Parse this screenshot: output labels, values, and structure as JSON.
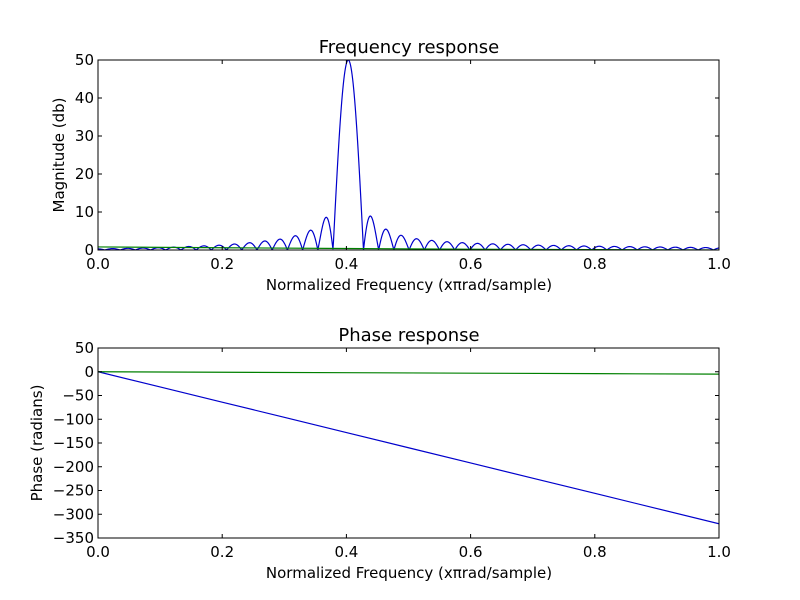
{
  "chart_data": [
    {
      "type": "line",
      "title": "Frequency response",
      "xlabel": "Normalized Frequency (xπrad/sample)",
      "ylabel": "Magnitude (db)",
      "xlim": [
        0,
        1
      ],
      "ylim": [
        0,
        50
      ],
      "xticks": [
        "0.0",
        "0.2",
        "0.4",
        "0.6",
        "0.8",
        "1.0"
      ],
      "yticks": [
        "0",
        "10",
        "20",
        "30",
        "40",
        "50"
      ],
      "grid": false,
      "series": [
        {
          "color": "#0000cc",
          "shape": "sinc-lobes",
          "center": 0.403,
          "peak": 50,
          "null_spacing": 0.0245,
          "sidelobe_peaks": {
            "x": [
              0.377,
              0.429,
              0.353,
              0.454,
              0.328,
              0.479,
              0.3,
              0.5,
              0.25,
              0.55,
              0.2,
              0.6,
              0.1,
              0.7,
              0.0,
              0.8,
              0.9,
              1.0
            ],
            "y": [
              10.5,
              10.8,
              6.0,
              6.2,
              4.2,
              4.4,
              3.0,
              3.2,
              2.0,
              2.3,
              1.3,
              1.8,
              0.6,
              1.3,
              0.3,
              1.0,
              0.8,
              0.6
            ]
          }
        },
        {
          "color": "#008000",
          "x": [
            0.0,
            0.2,
            0.4,
            0.6,
            0.8,
            1.0
          ],
          "y": [
            0.8,
            0.6,
            0.4,
            0.2,
            0.1,
            0.0
          ]
        }
      ]
    },
    {
      "type": "line",
      "title": "Phase response",
      "xlabel": "Normalized Frequency (xπrad/sample)",
      "ylabel": "Phase (radians)",
      "xlim": [
        0,
        1
      ],
      "ylim": [
        -350,
        50
      ],
      "xticks": [
        "0.0",
        "0.2",
        "0.4",
        "0.6",
        "0.8",
        "1.0"
      ],
      "yticks": [
        "50",
        "0",
        "−50",
        "−100",
        "−150",
        "−200",
        "−250",
        "−300",
        "−350"
      ],
      "grid": false,
      "series": [
        {
          "color": "#0000cc",
          "x": [
            0.0,
            0.1,
            0.2,
            0.3,
            0.4,
            0.5,
            0.6,
            0.7,
            0.8,
            0.9,
            1.0
          ],
          "y": [
            0,
            -32,
            -64,
            -96,
            -128,
            -160,
            -192,
            -224,
            -256,
            -288,
            -320
          ]
        },
        {
          "color": "#008000",
          "x": [
            0.0,
            0.2,
            0.4,
            0.6,
            0.8,
            1.0
          ],
          "y": [
            0,
            -1,
            -2,
            -3,
            -4,
            -5
          ]
        }
      ]
    }
  ]
}
